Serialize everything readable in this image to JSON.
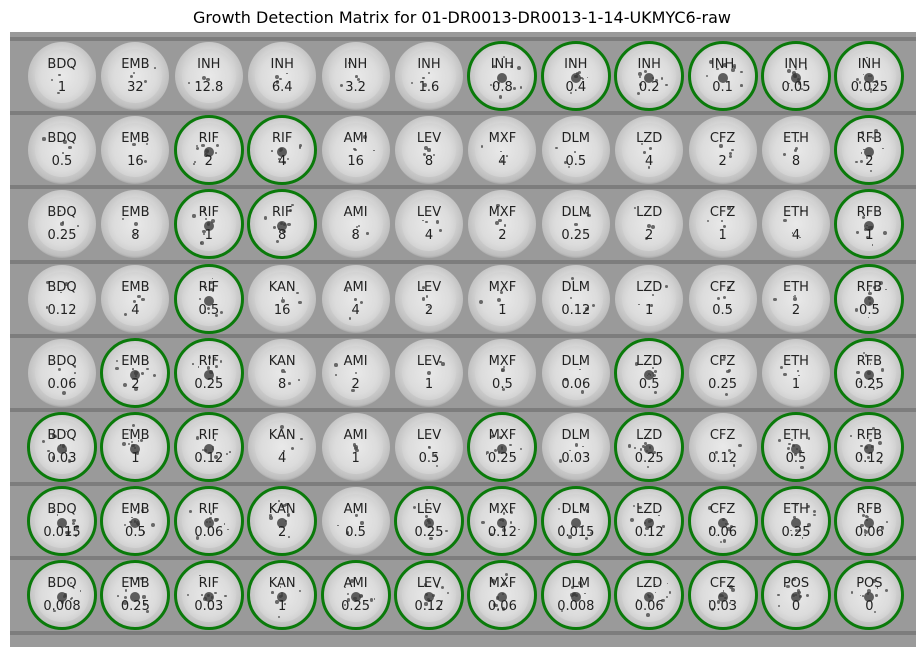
{
  "title": "Growth Detection Matrix for 01-DR0013-DR0013-1-14-UKMYC6-raw",
  "growth_color": "#0a7a0a",
  "wells": [
    [
      {
        "drug": "BDQ",
        "conc": "1",
        "growth": false
      },
      {
        "drug": "EMB",
        "conc": "32",
        "growth": false
      },
      {
        "drug": "INH",
        "conc": "12.8",
        "growth": false
      },
      {
        "drug": "INH",
        "conc": "6.4",
        "growth": false
      },
      {
        "drug": "INH",
        "conc": "3.2",
        "growth": false
      },
      {
        "drug": "INH",
        "conc": "1.6",
        "growth": false
      },
      {
        "drug": "INH",
        "conc": "0.8",
        "growth": true
      },
      {
        "drug": "INH",
        "conc": "0.4",
        "growth": true
      },
      {
        "drug": "INH",
        "conc": "0.2",
        "growth": true
      },
      {
        "drug": "INH",
        "conc": "0.1",
        "growth": true
      },
      {
        "drug": "INH",
        "conc": "0.05",
        "growth": true
      },
      {
        "drug": "INH",
        "conc": "0.025",
        "growth": true
      }
    ],
    [
      {
        "drug": "BDQ",
        "conc": "0.5",
        "growth": false
      },
      {
        "drug": "EMB",
        "conc": "16",
        "growth": false
      },
      {
        "drug": "RIF",
        "conc": "2",
        "growth": true
      },
      {
        "drug": "RIF",
        "conc": "4",
        "growth": true
      },
      {
        "drug": "AMI",
        "conc": "16",
        "growth": false
      },
      {
        "drug": "LEV",
        "conc": "8",
        "growth": false
      },
      {
        "drug": "MXF",
        "conc": "4",
        "growth": false
      },
      {
        "drug": "DLM",
        "conc": "0.5",
        "growth": false
      },
      {
        "drug": "LZD",
        "conc": "4",
        "growth": false
      },
      {
        "drug": "CFZ",
        "conc": "2",
        "growth": false
      },
      {
        "drug": "ETH",
        "conc": "8",
        "growth": false
      },
      {
        "drug": "RFB",
        "conc": "2",
        "growth": true
      }
    ],
    [
      {
        "drug": "BDQ",
        "conc": "0.25",
        "growth": false
      },
      {
        "drug": "EMB",
        "conc": "8",
        "growth": false
      },
      {
        "drug": "RIF",
        "conc": "1",
        "growth": true
      },
      {
        "drug": "RIF",
        "conc": "8",
        "growth": true
      },
      {
        "drug": "AMI",
        "conc": "8",
        "growth": false
      },
      {
        "drug": "LEV",
        "conc": "4",
        "growth": false
      },
      {
        "drug": "MXF",
        "conc": "2",
        "growth": false
      },
      {
        "drug": "DLM",
        "conc": "0.25",
        "growth": false
      },
      {
        "drug": "LZD",
        "conc": "2",
        "growth": false
      },
      {
        "drug": "CFZ",
        "conc": "1",
        "growth": false
      },
      {
        "drug": "ETH",
        "conc": "4",
        "growth": false
      },
      {
        "drug": "RFB",
        "conc": "1",
        "growth": true
      }
    ],
    [
      {
        "drug": "BDQ",
        "conc": "0.12",
        "growth": false
      },
      {
        "drug": "EMB",
        "conc": "4",
        "growth": false
      },
      {
        "drug": "RIF",
        "conc": "0.5",
        "growth": true
      },
      {
        "drug": "KAN",
        "conc": "16",
        "growth": false
      },
      {
        "drug": "AMI",
        "conc": "4",
        "growth": false
      },
      {
        "drug": "LEV",
        "conc": "2",
        "growth": false
      },
      {
        "drug": "MXF",
        "conc": "1",
        "growth": false
      },
      {
        "drug": "DLM",
        "conc": "0.12",
        "growth": false
      },
      {
        "drug": "LZD",
        "conc": "1",
        "growth": false
      },
      {
        "drug": "CFZ",
        "conc": "0.5",
        "growth": false
      },
      {
        "drug": "ETH",
        "conc": "2",
        "growth": false
      },
      {
        "drug": "RFB",
        "conc": "0.5",
        "growth": true
      }
    ],
    [
      {
        "drug": "BDQ",
        "conc": "0.06",
        "growth": false
      },
      {
        "drug": "EMB",
        "conc": "2",
        "growth": true
      },
      {
        "drug": "RIF",
        "conc": "0.25",
        "growth": true
      },
      {
        "drug": "KAN",
        "conc": "8",
        "growth": false
      },
      {
        "drug": "AMI",
        "conc": "2",
        "growth": false
      },
      {
        "drug": "LEV",
        "conc": "1",
        "growth": false
      },
      {
        "drug": "MXF",
        "conc": "0.5",
        "growth": false
      },
      {
        "drug": "DLM",
        "conc": "0.06",
        "growth": false
      },
      {
        "drug": "LZD",
        "conc": "0.5",
        "growth": true
      },
      {
        "drug": "CFZ",
        "conc": "0.25",
        "growth": false
      },
      {
        "drug": "ETH",
        "conc": "1",
        "growth": false
      },
      {
        "drug": "RFB",
        "conc": "0.25",
        "growth": true
      }
    ],
    [
      {
        "drug": "BDQ",
        "conc": "0.03",
        "growth": true
      },
      {
        "drug": "EMB",
        "conc": "1",
        "growth": true
      },
      {
        "drug": "RIF",
        "conc": "0.12",
        "growth": true
      },
      {
        "drug": "KAN",
        "conc": "4",
        "growth": false
      },
      {
        "drug": "AMI",
        "conc": "1",
        "growth": false
      },
      {
        "drug": "LEV",
        "conc": "0.5",
        "growth": false
      },
      {
        "drug": "MXF",
        "conc": "0.25",
        "growth": true
      },
      {
        "drug": "DLM",
        "conc": "0.03",
        "growth": false
      },
      {
        "drug": "LZD",
        "conc": "0.25",
        "growth": true
      },
      {
        "drug": "CFZ",
        "conc": "0.12",
        "growth": false
      },
      {
        "drug": "ETH",
        "conc": "0.5",
        "growth": true
      },
      {
        "drug": "RFB",
        "conc": "0.12",
        "growth": true
      }
    ],
    [
      {
        "drug": "BDQ",
        "conc": "0.015",
        "growth": true
      },
      {
        "drug": "EMB",
        "conc": "0.5",
        "growth": true
      },
      {
        "drug": "RIF",
        "conc": "0.06",
        "growth": true
      },
      {
        "drug": "KAN",
        "conc": "2",
        "growth": true
      },
      {
        "drug": "AMI",
        "conc": "0.5",
        "growth": false
      },
      {
        "drug": "LEV",
        "conc": "0.25",
        "growth": true
      },
      {
        "drug": "MXF",
        "conc": "0.12",
        "growth": true
      },
      {
        "drug": "DLM",
        "conc": "0.015",
        "growth": true
      },
      {
        "drug": "LZD",
        "conc": "0.12",
        "growth": true
      },
      {
        "drug": "CFZ",
        "conc": "0.06",
        "growth": true
      },
      {
        "drug": "ETH",
        "conc": "0.25",
        "growth": true
      },
      {
        "drug": "RFB",
        "conc": "0.06",
        "growth": true
      }
    ],
    [
      {
        "drug": "BDQ",
        "conc": "0.008",
        "growth": true
      },
      {
        "drug": "EMB",
        "conc": "0.25",
        "growth": true
      },
      {
        "drug": "RIF",
        "conc": "0.03",
        "growth": true
      },
      {
        "drug": "KAN",
        "conc": "1",
        "growth": true
      },
      {
        "drug": "AMI",
        "conc": "0.25",
        "growth": true
      },
      {
        "drug": "LEV",
        "conc": "0.12",
        "growth": true
      },
      {
        "drug": "MXF",
        "conc": "0.06",
        "growth": true
      },
      {
        "drug": "DLM",
        "conc": "0.008",
        "growth": true
      },
      {
        "drug": "LZD",
        "conc": "0.06",
        "growth": true
      },
      {
        "drug": "CFZ",
        "conc": "0.03",
        "growth": true
      },
      {
        "drug": "POS",
        "conc": "0",
        "growth": true
      },
      {
        "drug": "POS",
        "conc": "0",
        "growth": true
      }
    ]
  ]
}
